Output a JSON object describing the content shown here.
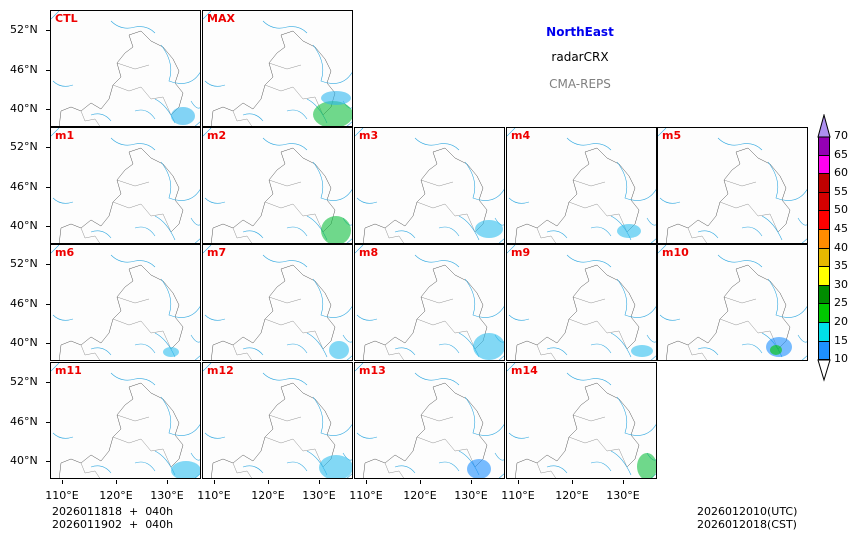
{
  "title": {
    "region": "NorthEast",
    "variable": "radarCRX",
    "model": "CMA-REPS"
  },
  "panels": [
    "CTL",
    "MAX",
    "m1",
    "m2",
    "m3",
    "m4",
    "m5",
    "m6",
    "m7",
    "m8",
    "m9",
    "m10",
    "m11",
    "m12",
    "m13",
    "m14"
  ],
  "lat_ticks": [
    "52°N",
    "46°N",
    "40°N"
  ],
  "lon_ticks": [
    "110°E",
    "120°E",
    "130°E"
  ],
  "init_lines": [
    "2026011818  +  040h",
    "2026011902  +  040h"
  ],
  "valid_lines": [
    "2026012010(UTC)",
    "2026012018(CST)"
  ],
  "colorbar": {
    "levels": [
      "10",
      "15",
      "20",
      "25",
      "30",
      "35",
      "40",
      "45",
      "50",
      "55",
      "60",
      "65",
      "70"
    ],
    "colors": [
      "#1e90ff",
      "#00e0e8",
      "#00c800",
      "#008c00",
      "#ffff00",
      "#e6b800",
      "#ff8c00",
      "#ff0000",
      "#d40000",
      "#c00000",
      "#ff00f0",
      "#9400b4"
    ],
    "under_color": "#ffffff",
    "over_color": "#ad90f0"
  },
  "colors": {
    "title_region": "#0000ee",
    "panel_label": "#ee0000",
    "model": "#808080"
  }
}
